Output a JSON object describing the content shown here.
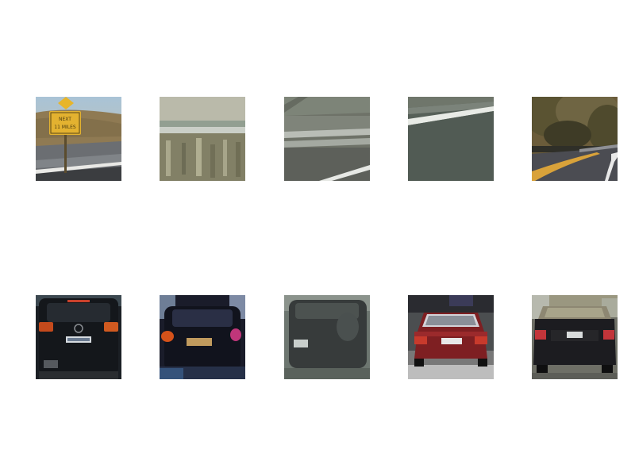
{
  "images": [
    {
      "subject": "road-sign-patch",
      "sign_text": "NEXT\n11 MILES",
      "kind": "non-vehicle"
    },
    {
      "subject": "guardrail-blurred-patch",
      "kind": "non-vehicle"
    },
    {
      "subject": "guardrail-patch",
      "kind": "non-vehicle"
    },
    {
      "subject": "road-surface-patch",
      "kind": "non-vehicle"
    },
    {
      "subject": "road-with-trees-patch",
      "kind": "non-vehicle"
    },
    {
      "subject": "dark-suv-rear-patch",
      "kind": "vehicle"
    },
    {
      "subject": "blurred-dark-car-rear-patch",
      "kind": "vehicle"
    },
    {
      "subject": "gray-car-rear-blurred-patch",
      "kind": "vehicle"
    },
    {
      "subject": "red-sedan-rear-patch",
      "kind": "vehicle"
    },
    {
      "subject": "dark-convertible-rear-patch",
      "kind": "vehicle"
    }
  ]
}
